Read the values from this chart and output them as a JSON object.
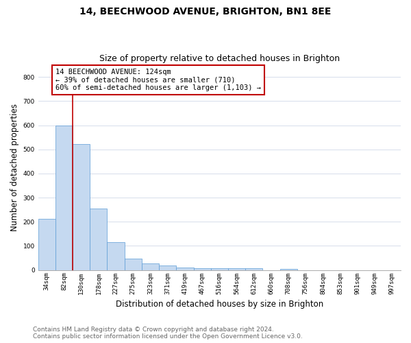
{
  "title": "14, BEECHWOOD AVENUE, BRIGHTON, BN1 8EE",
  "subtitle": "Size of property relative to detached houses in Brighton",
  "xlabel": "Distribution of detached houses by size in Brighton",
  "ylabel": "Number of detached properties",
  "categories": [
    "34sqm",
    "82sqm",
    "130sqm",
    "178sqm",
    "227sqm",
    "275sqm",
    "323sqm",
    "371sqm",
    "419sqm",
    "467sqm",
    "516sqm",
    "564sqm",
    "612sqm",
    "660sqm",
    "708sqm",
    "756sqm",
    "804sqm",
    "853sqm",
    "901sqm",
    "949sqm",
    "997sqm"
  ],
  "values": [
    213,
    598,
    523,
    255,
    115,
    47,
    27,
    18,
    10,
    7,
    7,
    7,
    7,
    0,
    5,
    0,
    0,
    0,
    0,
    0,
    0
  ],
  "bar_color": "#c5d9f0",
  "bar_edge_color": "#5b9bd5",
  "vline_x_index": 2,
  "vline_color": "#c00000",
  "annotation_title": "14 BEECHWOOD AVENUE: 124sqm",
  "annotation_line1": "← 39% of detached houses are smaller (710)",
  "annotation_line2": "60% of semi-detached houses are larger (1,103) →",
  "annotation_box_color": "#c00000",
  "ylim": [
    0,
    850
  ],
  "yticks": [
    0,
    100,
    200,
    300,
    400,
    500,
    600,
    700,
    800
  ],
  "footer_line1": "Contains HM Land Registry data © Crown copyright and database right 2024.",
  "footer_line2": "Contains public sector information licensed under the Open Government Licence v3.0.",
  "bg_color": "#ffffff",
  "grid_color": "#d0d8e8",
  "title_fontsize": 10,
  "subtitle_fontsize": 9,
  "axis_label_fontsize": 8.5,
  "tick_fontsize": 6.5,
  "annotation_fontsize": 7.5,
  "footer_fontsize": 6.5
}
